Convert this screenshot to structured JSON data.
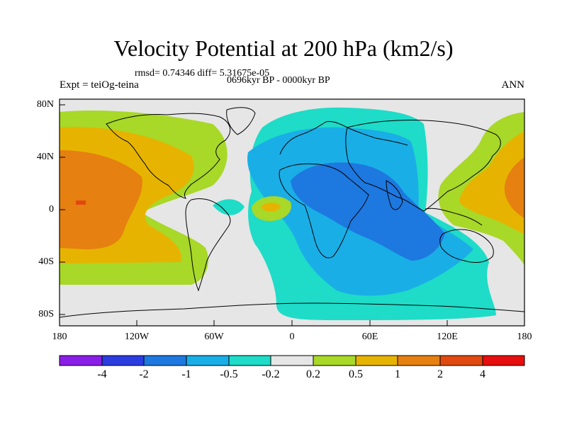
{
  "title": "Velocity Potential at 200 hPa (km2/s)",
  "stats": "rmsd= 0.74346 diff= 5.31675e-05",
  "period": "0696kyr BP - 0000kyr BP",
  "experiment": "Expt = teiOg-teina",
  "season": "ANN",
  "map": {
    "lat_labels": [
      "80N",
      "40N",
      "0",
      "40S",
      "80S"
    ],
    "lon_labels": [
      "180",
      "120W",
      "60W",
      "0",
      "60E",
      "120E",
      "180"
    ]
  },
  "colorbar": {
    "labels": [
      "-4",
      "-2",
      "-1",
      "-0.5",
      "-0.2",
      "0.2",
      "0.5",
      "1",
      "2",
      "4"
    ],
    "colors": [
      "#8a1ee6",
      "#2b3ce0",
      "#1d78e0",
      "#1aaee6",
      "#1edcc8",
      "#e6e6e6",
      "#a8d828",
      "#e6b400",
      "#e68010",
      "#e04a10",
      "#e60e0e"
    ]
  }
}
